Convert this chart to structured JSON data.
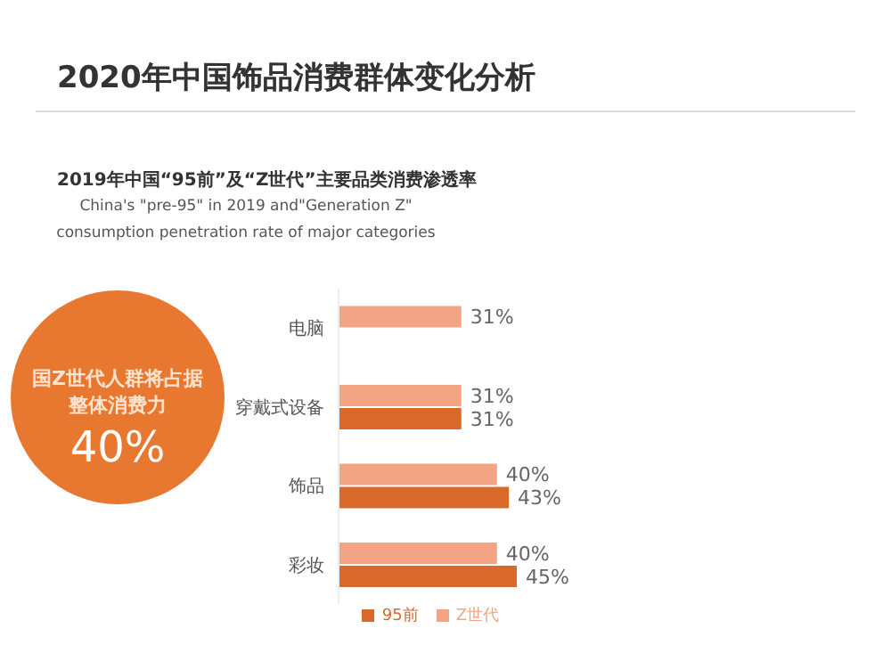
{
  "chart_data": {
    "type": "bar",
    "orientation": "horizontal",
    "title": "2020年中国饰品消费群体变化分析",
    "subtitle": "2019年中国“95前”及“Z世代”主要品类消费渗透率",
    "annotations": [
      "China's \"pre-95\" in 2019 and\"Generation Z\" consumption penetration rate of major categories",
      "国Z世代人群将占据整体消费力",
      "40%"
    ],
    "categories": [
      "电脑",
      "穿戴式设备",
      "饰品",
      "彩妆"
    ],
    "series": [
      {
        "name": "Z世代",
        "color": "#f2a484",
        "values": [
          31,
          31,
          40,
          40
        ],
        "value_labels": [
          "31%",
          "31%",
          "40%",
          "40%"
        ]
      },
      {
        "name": "95前",
        "color": "#d8692b",
        "values": [
          null,
          31,
          43,
          45
        ],
        "value_labels": [
          null,
          "31%",
          "43%",
          "45%"
        ]
      }
    ],
    "legend": "bottom right"
  }
}
